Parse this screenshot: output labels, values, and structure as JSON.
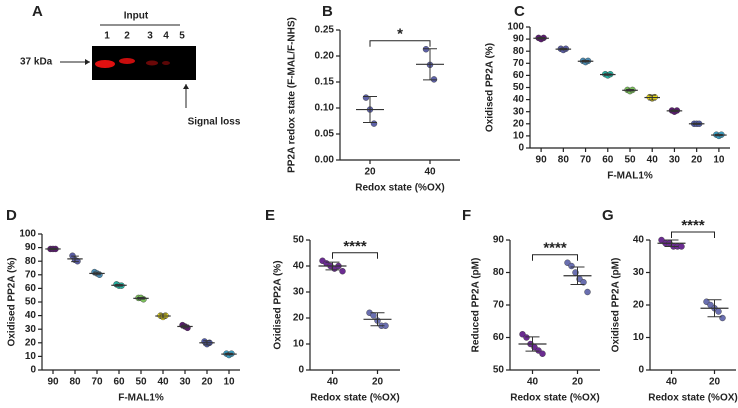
{
  "blot": {
    "panel": "A",
    "title": "Input",
    "lanes": [
      "1",
      "2",
      "3",
      "4",
      "5"
    ],
    "marker": "37 kDa",
    "annotation": "Signal loss"
  },
  "chart_data": [
    {
      "type": "dot",
      "panel": "B",
      "ylabel": "PP2A redox state (F-MAL/F-NHS)",
      "xlabel": "Redox state (%OX)",
      "categories": [
        "20",
        "40"
      ],
      "colors": [
        "#5e62a8",
        "#5e62a8"
      ],
      "points": [
        [
          0.12,
          0.097,
          0.07
        ],
        [
          0.213,
          0.183,
          0.155
        ]
      ],
      "means": [
        0.097,
        0.184
      ],
      "errors": [
        0.025,
        0.03
      ],
      "ylim": [
        0,
        0.25
      ],
      "yticks": [
        {
          "value": 0,
          "label": "0.00"
        },
        {
          "value": 0.05,
          "label": "0.05"
        },
        {
          "value": 0.1,
          "label": "0.10"
        },
        {
          "value": 0.15,
          "label": "0.15"
        },
        {
          "value": 0.2,
          "label": "0.20"
        },
        {
          "value": 0.25,
          "label": "0.25"
        }
      ],
      "significance": "*"
    },
    {
      "type": "dot",
      "panel": "C",
      "ylabel": "Oxidised PP2A (%)",
      "xlabel": "F-MAL1%",
      "categories": [
        "90",
        "80",
        "70",
        "60",
        "50",
        "40",
        "30",
        "20",
        "10"
      ],
      "colors": [
        "#5c1a72",
        "#5b5ea6",
        "#4a8db5",
        "#26b0a0",
        "#7cc15c",
        "#f2e21a",
        "#5c1a72",
        "#4f5aa6",
        "#3a9fc4"
      ],
      "points": [
        [
          91,
          90,
          91
        ],
        [
          82,
          81,
          82
        ],
        [
          72,
          71,
          72
        ],
        [
          61,
          60,
          61
        ],
        [
          48,
          47,
          48
        ],
        [
          42,
          41,
          42
        ],
        [
          31,
          30,
          31
        ],
        [
          20,
          20,
          20
        ],
        [
          11,
          10,
          11
        ]
      ],
      "means": [
        90.7,
        81.7,
        71.7,
        60.7,
        47.7,
        41.7,
        30.7,
        20,
        10.7
      ],
      "errors": [
        0.6,
        0.6,
        0.6,
        0.6,
        0.6,
        2,
        0.6,
        0.5,
        0.6
      ],
      "ylim": [
        0,
        100
      ],
      "yticks": [
        0,
        10,
        20,
        30,
        40,
        50,
        60,
        70,
        80,
        90,
        100
      ]
    },
    {
      "type": "dot",
      "panel": "D",
      "ylabel": "Oxidised PP2A (%)",
      "xlabel": "F-MAL1%",
      "categories": [
        "90",
        "80",
        "70",
        "60",
        "50",
        "40",
        "30",
        "20",
        "10"
      ],
      "colors": [
        "#5c1a72",
        "#5b5ea6",
        "#4a8db5",
        "#26b0a0",
        "#7cc15c",
        "#f2e21a",
        "#5c1a72",
        "#4f5aa6",
        "#3a9fc4"
      ],
      "points": [
        [
          89,
          89,
          89
        ],
        [
          84,
          81,
          80
        ],
        [
          72,
          71,
          70
        ],
        [
          63,
          62,
          62
        ],
        [
          53,
          53,
          52
        ],
        [
          40,
          39,
          40
        ],
        [
          33,
          32,
          31
        ],
        [
          21,
          19,
          20
        ],
        [
          12,
          11,
          12
        ]
      ],
      "means": [
        89,
        81.7,
        71,
        62.3,
        52.7,
        39.7,
        32,
        20,
        11.7
      ],
      "errors": [
        0.5,
        2,
        1,
        0.6,
        0.6,
        1.5,
        1,
        1.5,
        0.6
      ],
      "ylim": [
        0,
        100
      ],
      "yticks": [
        0,
        10,
        20,
        30,
        40,
        50,
        60,
        70,
        80,
        90,
        100
      ]
    },
    {
      "type": "dot",
      "panel": "E",
      "ylabel": "Oxidised PP2A (%)",
      "xlabel": "Redox state (%OX)",
      "categories": [
        "40",
        "20"
      ],
      "colors": [
        "#6b2c91",
        "#6a6fb0"
      ],
      "points": [
        [
          42,
          41,
          40,
          39,
          40,
          38
        ],
        [
          22,
          21,
          19,
          17,
          17
        ]
      ],
      "means": [
        40,
        19.5
      ],
      "errors": [
        1.5,
        2.5
      ],
      "ylim": [
        0,
        50
      ],
      "yticks": [
        0,
        10,
        20,
        30,
        40,
        50
      ],
      "significance": "****"
    },
    {
      "type": "dot",
      "panel": "F",
      "ylabel": "Reduced PP2A (pM)",
      "xlabel": "Redox state (%OX)",
      "categories": [
        "40",
        "20"
      ],
      "colors": [
        "#6b2c91",
        "#6a6fb0"
      ],
      "points": [
        [
          61,
          60,
          58,
          57,
          56,
          55
        ],
        [
          83,
          82,
          80,
          78,
          77,
          74
        ]
      ],
      "means": [
        58,
        79
      ],
      "errors": [
        2.2,
        2.7
      ],
      "ylim": [
        50,
        90
      ],
      "yticks": [
        50,
        60,
        70,
        80,
        90
      ],
      "significance": "****"
    },
    {
      "type": "dot",
      "panel": "G",
      "ylabel": "Oxidised PP2A (pM)",
      "xlabel": "Redox state (%OX)",
      "categories": [
        "40",
        "20"
      ],
      "colors": [
        "#6b2c91",
        "#6a6fb0"
      ],
      "points": [
        [
          40,
          39,
          39,
          38,
          38,
          38
        ],
        [
          21,
          20,
          19,
          18,
          16
        ]
      ],
      "means": [
        39,
        19
      ],
      "errors": [
        1,
        2.6
      ],
      "ylim": [
        0,
        40
      ],
      "yticks": [
        0,
        10,
        20,
        30,
        40
      ],
      "significance": "****"
    }
  ]
}
